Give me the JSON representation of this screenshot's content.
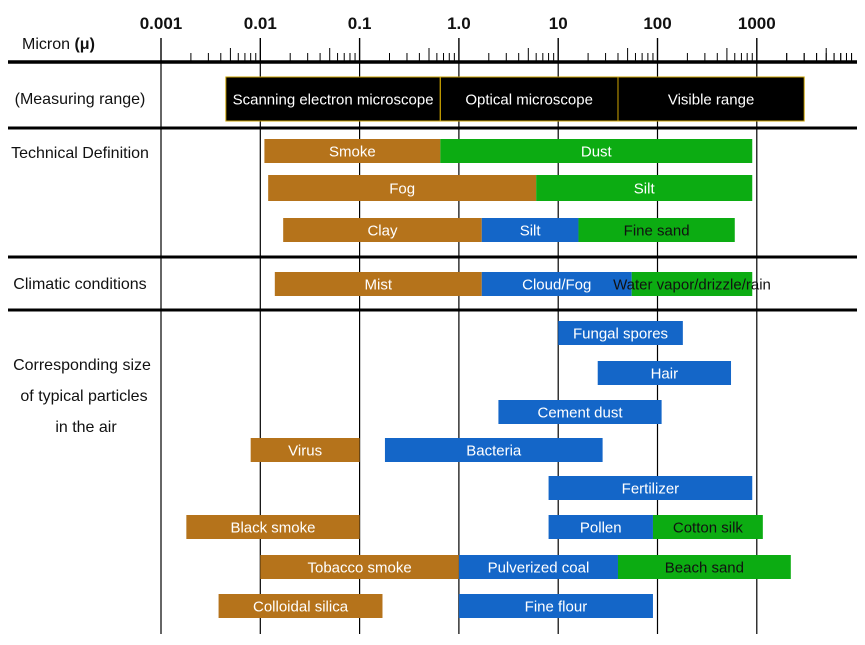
{
  "chart_data": {
    "type": "bar",
    "orientation": "horizontal-range",
    "x_scale": "log",
    "xlim": [
      0.001,
      3000
    ],
    "axis_title": "Micron",
    "axis_unit": "(μ)",
    "ticks": [
      "0.001",
      "0.01",
      "0.1",
      "1.0",
      "10",
      "100",
      "1000"
    ],
    "tick_values": [
      0.001,
      0.01,
      0.1,
      1,
      10,
      100,
      1000
    ],
    "colors": {
      "orange": "#b5731b",
      "blue": "#1466c8",
      "green": "#0cac12",
      "black": "#000000",
      "black_border": "#c8a000"
    },
    "groups": [
      {
        "label_lines": [
          "(Measuring range)"
        ]
      },
      {
        "label_lines": [
          "Technical Definition"
        ]
      },
      {
        "label_lines": [
          "Climatic conditions"
        ]
      },
      {
        "label_lines": [
          "Corresponding size",
          "of typical particles",
          "in the air"
        ]
      }
    ],
    "bars": [
      {
        "label": "Scanning electron microscope",
        "from": 0.0045,
        "to": 0.65,
        "color": "black",
        "row": 0
      },
      {
        "label": "Optical microscope",
        "from": 0.65,
        "to": 40,
        "color": "black",
        "row": 0
      },
      {
        "label": "Visible range",
        "from": 40,
        "to": 3000,
        "color": "black",
        "row": 0
      },
      {
        "label": "Smoke",
        "from": 0.011,
        "to": 0.65,
        "color": "orange",
        "row": 1
      },
      {
        "label": "Dust",
        "from": 0.65,
        "to": 900,
        "color": "green",
        "row": 1
      },
      {
        "label": "Fog",
        "from": 0.012,
        "to": 6,
        "color": "orange",
        "row": 2
      },
      {
        "label": "Silt",
        "from": 6,
        "to": 900,
        "color": "green",
        "row": 2
      },
      {
        "label": "Clay",
        "from": 0.017,
        "to": 1.7,
        "color": "orange",
        "row": 3
      },
      {
        "label": "Silt",
        "from": 1.7,
        "to": 16,
        "color": "blue",
        "row": 3
      },
      {
        "label": "Fine sand",
        "from": 16,
        "to": 600,
        "color": "green",
        "row": 3
      },
      {
        "label": "Mist",
        "from": 0.014,
        "to": 1.7,
        "color": "orange",
        "row": 4
      },
      {
        "label": "Cloud/Fog",
        "from": 1.7,
        "to": 55,
        "color": "blue",
        "row": 4
      },
      {
        "label": "Water vapor/drizzle/rain",
        "from": 55,
        "to": 900,
        "color": "green",
        "row": 4
      },
      {
        "label": "Fungal spores",
        "from": 10,
        "to": 180,
        "color": "blue",
        "row": 5
      },
      {
        "label": "Hair",
        "from": 25,
        "to": 550,
        "color": "blue",
        "row": 6
      },
      {
        "label": "Cement dust",
        "from": 2.5,
        "to": 110,
        "color": "blue",
        "row": 7
      },
      {
        "label": "Virus",
        "from": 0.008,
        "to": 0.1,
        "color": "orange",
        "row": 8
      },
      {
        "label": "Bacteria",
        "from": 0.18,
        "to": 28,
        "color": "blue",
        "row": 8
      },
      {
        "label": "Fertilizer",
        "from": 8,
        "to": 900,
        "color": "blue",
        "row": 9
      },
      {
        "label": "Black smoke",
        "from": 0.0018,
        "to": 0.1,
        "color": "orange",
        "row": 10
      },
      {
        "label": "Pollen",
        "from": 8,
        "to": 90,
        "color": "blue",
        "row": 10
      },
      {
        "label": "Cotton silk",
        "from": 90,
        "to": 1150,
        "color": "green",
        "row": 10
      },
      {
        "label": "Tobacco smoke",
        "from": 0.01,
        "to": 1,
        "color": "orange",
        "row": 11
      },
      {
        "label": "Pulverized coal",
        "from": 1,
        "to": 40,
        "color": "blue",
        "row": 11
      },
      {
        "label": "Beach sand",
        "from": 40,
        "to": 2200,
        "color": "green",
        "row": 11
      },
      {
        "label": "Colloidal silica",
        "from": 0.0038,
        "to": 0.17,
        "color": "orange",
        "row": 12
      },
      {
        "label": "Fine flour",
        "from": 1,
        "to": 90,
        "color": "blue",
        "row": 12
      }
    ]
  }
}
